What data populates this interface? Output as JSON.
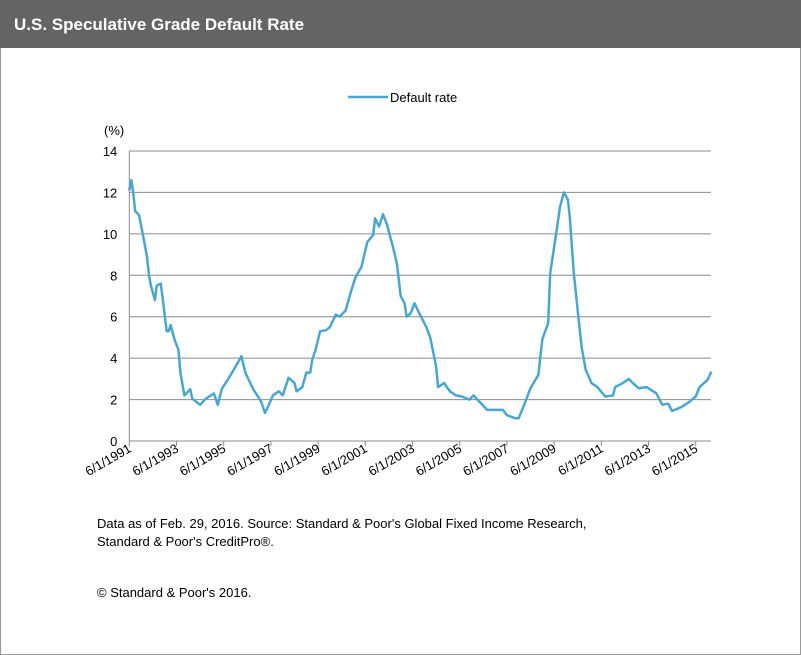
{
  "header": {
    "title": "U.S. Speculative Grade Default Rate"
  },
  "chart_data": {
    "type": "line",
    "title": "",
    "ylabel": "(%)",
    "xlabel": "",
    "ylim": [
      0,
      14
    ],
    "yticks": [
      "0",
      "2",
      "4",
      "6",
      "8",
      "10",
      "12",
      "14"
    ],
    "xticks": [
      "6/1/1991",
      "6/1/1993",
      "6/1/1995",
      "6/1/1997",
      "6/1/1999",
      "6/1/2001",
      "6/1/2003",
      "6/1/2005",
      "6/1/2007",
      "6/1/2009",
      "6/1/2011",
      "6/1/2013",
      "6/1/2015"
    ],
    "xlim": [
      "1991-06",
      "2016-02"
    ],
    "grid": "horizontal",
    "legend_position": "top-center",
    "series": [
      {
        "name": "Default rate",
        "color": "#4aa6d0",
        "points": [
          [
            "1991-06",
            12.1
          ],
          [
            "1991-07",
            12.6
          ],
          [
            "1991-08",
            12.0
          ],
          [
            "1991-09",
            11.1
          ],
          [
            "1991-11",
            10.9
          ],
          [
            "1992-01",
            9.9
          ],
          [
            "1992-03",
            8.9
          ],
          [
            "1992-04",
            8.0
          ],
          [
            "1992-05",
            7.5
          ],
          [
            "1992-07",
            6.8
          ],
          [
            "1992-08",
            7.5
          ],
          [
            "1992-10",
            7.6
          ],
          [
            "1993-01",
            5.3
          ],
          [
            "1993-02",
            5.3
          ],
          [
            "1993-03",
            5.6
          ],
          [
            "1993-05",
            4.9
          ],
          [
            "1993-07",
            4.4
          ],
          [
            "1993-08",
            3.3
          ],
          [
            "1993-10",
            2.2
          ],
          [
            "1993-11",
            2.3
          ],
          [
            "1994-01",
            2.5
          ],
          [
            "1994-02",
            2.05
          ],
          [
            "1994-06",
            1.75
          ],
          [
            "1994-09",
            2.05
          ],
          [
            "1995-01",
            2.3
          ],
          [
            "1995-03",
            1.75
          ],
          [
            "1995-05",
            2.5
          ],
          [
            "1995-09",
            3.1
          ],
          [
            "1996-01",
            3.75
          ],
          [
            "1996-03",
            4.1
          ],
          [
            "1996-05",
            3.3
          ],
          [
            "1996-09",
            2.5
          ],
          [
            "1997-01",
            1.9
          ],
          [
            "1997-03",
            1.35
          ],
          [
            "1997-05",
            1.75
          ],
          [
            "1997-07",
            2.2
          ],
          [
            "1997-10",
            2.4
          ],
          [
            "1997-12",
            2.2
          ],
          [
            "1998-03",
            3.05
          ],
          [
            "1998-06",
            2.8
          ],
          [
            "1998-07",
            2.4
          ],
          [
            "1998-10",
            2.6
          ],
          [
            "1998-12",
            3.3
          ],
          [
            "1999-02",
            3.3
          ],
          [
            "1999-03",
            3.9
          ],
          [
            "1999-05",
            4.5
          ],
          [
            "1999-07",
            5.3
          ],
          [
            "1999-10",
            5.35
          ],
          [
            "1999-12",
            5.5
          ],
          [
            "2000-01",
            5.7
          ],
          [
            "2000-03",
            6.1
          ],
          [
            "2000-05",
            6.0
          ],
          [
            "2000-08",
            6.3
          ],
          [
            "2000-11",
            7.3
          ],
          [
            "2001-01",
            7.9
          ],
          [
            "2001-04",
            8.4
          ],
          [
            "2001-07",
            9.6
          ],
          [
            "2001-10",
            9.95
          ],
          [
            "2001-11",
            10.75
          ],
          [
            "2002-01",
            10.35
          ],
          [
            "2002-03",
            10.95
          ],
          [
            "2002-05",
            10.45
          ],
          [
            "2002-08",
            9.4
          ],
          [
            "2002-10",
            8.6
          ],
          [
            "2002-12",
            7.0
          ],
          [
            "2003-02",
            6.65
          ],
          [
            "2003-03",
            6.0
          ],
          [
            "2003-05",
            6.15
          ],
          [
            "2003-07",
            6.65
          ],
          [
            "2003-09",
            6.25
          ],
          [
            "2004-01",
            5.5
          ],
          [
            "2004-03",
            5.0
          ],
          [
            "2004-06",
            3.6
          ],
          [
            "2004-07",
            2.6
          ],
          [
            "2004-10",
            2.8
          ],
          [
            "2005-01",
            2.4
          ],
          [
            "2005-04",
            2.2
          ],
          [
            "2005-07",
            2.15
          ],
          [
            "2005-11",
            2.0
          ],
          [
            "2006-01",
            2.2
          ],
          [
            "2006-04",
            1.9
          ],
          [
            "2006-08",
            1.5
          ],
          [
            "2007-01",
            1.5
          ],
          [
            "2007-04",
            1.5
          ],
          [
            "2007-06",
            1.25
          ],
          [
            "2007-10",
            1.1
          ],
          [
            "2007-12",
            1.1
          ],
          [
            "2008-03",
            1.8
          ],
          [
            "2008-06",
            2.55
          ],
          [
            "2008-10",
            3.2
          ],
          [
            "2008-12",
            4.9
          ],
          [
            "2009-03",
            5.7
          ],
          [
            "2009-04",
            8.1
          ],
          [
            "2009-07",
            10.0
          ],
          [
            "2009-09",
            11.3
          ],
          [
            "2009-11",
            12.0
          ],
          [
            "2010-01",
            11.65
          ],
          [
            "2010-02",
            10.8
          ],
          [
            "2010-04",
            8.1
          ],
          [
            "2010-06",
            6.3
          ],
          [
            "2010-08",
            4.55
          ],
          [
            "2010-10",
            3.45
          ],
          [
            "2011-01",
            2.8
          ],
          [
            "2011-04",
            2.6
          ],
          [
            "2011-08",
            2.15
          ],
          [
            "2011-12",
            2.2
          ],
          [
            "2012-01",
            2.6
          ],
          [
            "2012-05",
            2.8
          ],
          [
            "2012-08",
            3.0
          ],
          [
            "2012-10",
            2.8
          ],
          [
            "2013-01",
            2.55
          ],
          [
            "2013-05",
            2.6
          ],
          [
            "2013-10",
            2.3
          ],
          [
            "2014-01",
            1.75
          ],
          [
            "2014-04",
            1.8
          ],
          [
            "2014-06",
            1.45
          ],
          [
            "2014-11",
            1.65
          ],
          [
            "2015-03",
            1.9
          ],
          [
            "2015-06",
            2.15
          ],
          [
            "2015-08",
            2.6
          ],
          [
            "2015-12",
            2.95
          ],
          [
            "2016-02",
            3.35
          ]
        ]
      }
    ]
  },
  "notes": {
    "source_line1": "Data as of Feb. 29, 2016. Source: Standard & Poor's Global Fixed Income Research,",
    "source_line2": "Standard & Poor's CreditPro®.",
    "copyright": "© Standard & Poor's 2016."
  }
}
